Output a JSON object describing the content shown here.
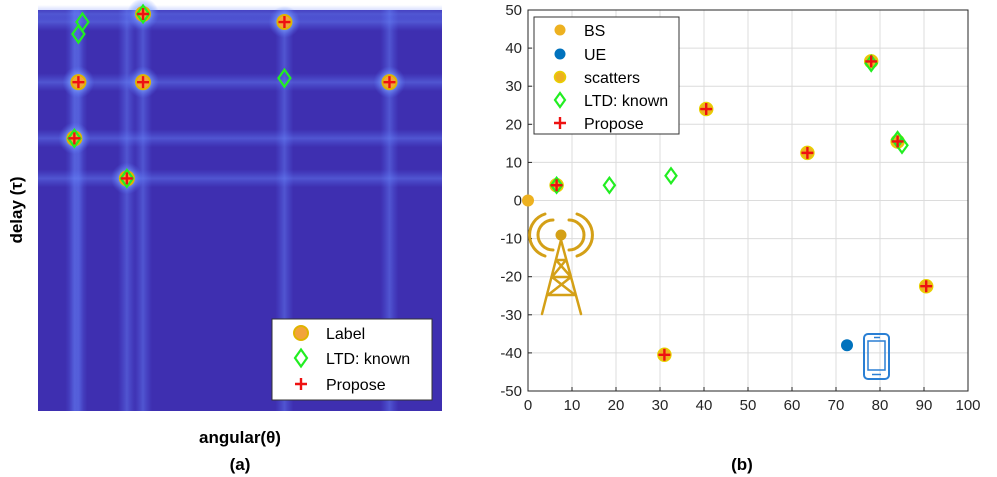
{
  "panel_a": {
    "caption": "(a)",
    "xlabel": "angular(θ)",
    "ylabel": "delay (τ)",
    "legend": [
      "Label",
      "LTD: known",
      "Propose"
    ]
  },
  "panel_b": {
    "caption": "(b)",
    "legend": [
      "BS",
      "UE",
      "scatters",
      "LTD: known",
      "Propose"
    ]
  },
  "colors": {
    "heatmap_bg": "#3e2fb0",
    "heat_glow": "#5a78ff",
    "label_fill": "#f2a33a",
    "label_edge": "#e0b400",
    "ltd": "#22ee22",
    "propose": "#ee1111",
    "bs": "#edb120",
    "ue": "#0072bd",
    "scatter_fill": "#edb120",
    "scatter_edge": "#e8d000",
    "grid": "#dcdcdc",
    "tower": "#d4a017",
    "phone": "#2a7fd4"
  },
  "chart_data": [
    {
      "type": "heatmap",
      "panel": "a",
      "xlabel": "angular(θ)",
      "ylabel": "delay (τ)",
      "xlim": [
        0,
        1
      ],
      "ylim": [
        0,
        1
      ],
      "axis_ticks": false,
      "legend": [
        "Label",
        "LTD: known",
        "Propose"
      ],
      "legend_position": "bottom-right",
      "series": [
        {
          "name": "Label",
          "points": [
            [
              0.26,
              0.99
            ],
            [
              0.61,
              0.97
            ],
            [
              0.1,
              0.82
            ],
            [
              0.26,
              0.82
            ],
            [
              0.87,
              0.82
            ],
            [
              0.09,
              0.68
            ],
            [
              0.22,
              0.58
            ]
          ]
        },
        {
          "name": "LTD: known",
          "points": [
            [
              0.11,
              0.97
            ],
            [
              0.1,
              0.94
            ],
            [
              0.26,
              0.99
            ],
            [
              0.61,
              0.83
            ],
            [
              0.09,
              0.68
            ],
            [
              0.22,
              0.58
            ]
          ]
        },
        {
          "name": "Propose",
          "points": [
            [
              0.26,
              0.99
            ],
            [
              0.61,
              0.97
            ],
            [
              0.1,
              0.82
            ],
            [
              0.26,
              0.82
            ],
            [
              0.87,
              0.82
            ],
            [
              0.09,
              0.68
            ],
            [
              0.22,
              0.58
            ]
          ]
        }
      ]
    },
    {
      "type": "scatter",
      "panel": "b",
      "xlim": [
        0,
        100
      ],
      "ylim": [
        -50,
        50
      ],
      "xticks": [
        0,
        10,
        20,
        30,
        40,
        50,
        60,
        70,
        80,
        90,
        100
      ],
      "yticks": [
        -50,
        -40,
        -30,
        -20,
        -10,
        0,
        10,
        20,
        30,
        40,
        50
      ],
      "grid": true,
      "legend_position": "top-left",
      "series": [
        {
          "name": "BS",
          "points": [
            [
              0,
              0
            ]
          ]
        },
        {
          "name": "UE",
          "points": [
            [
              72.5,
              -38
            ]
          ]
        },
        {
          "name": "scatters",
          "points": [
            [
              6.5,
              4
            ],
            [
              31,
              -40.5
            ],
            [
              40.5,
              24
            ],
            [
              63.5,
              12.5
            ],
            [
              78,
              36.5
            ],
            [
              84,
              15.5
            ],
            [
              90.5,
              -22.5
            ]
          ]
        },
        {
          "name": "LTD: known",
          "points": [
            [
              6.5,
              4
            ],
            [
              18.5,
              4
            ],
            [
              32.5,
              6.5
            ],
            [
              78,
              36
            ],
            [
              84,
              16
            ],
            [
              85,
              14.5
            ]
          ]
        },
        {
          "name": "Propose",
          "points": [
            [
              6.5,
              4
            ],
            [
              31,
              -40.5
            ],
            [
              40.5,
              24
            ],
            [
              63.5,
              12.5
            ],
            [
              78,
              36.5
            ],
            [
              84,
              15.5
            ],
            [
              90.5,
              -22.5
            ]
          ]
        }
      ]
    }
  ]
}
